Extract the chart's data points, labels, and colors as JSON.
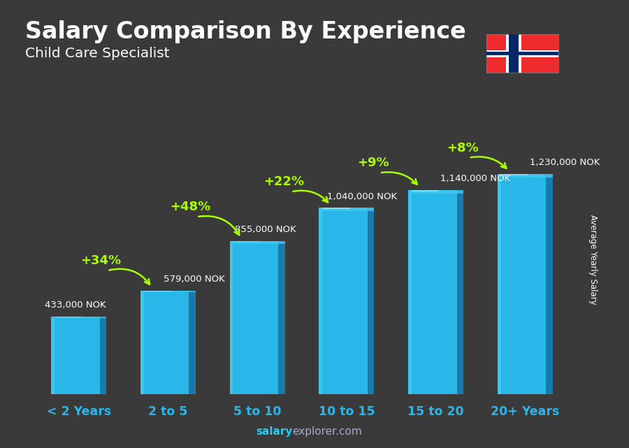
{
  "title": "Salary Comparison By Experience",
  "subtitle": "Child Care Specialist",
  "ylabel": "Average Yearly Salary",
  "footer": "salaryexplorer.com",
  "footer_bold": "salary",
  "categories": [
    "< 2 Years",
    "2 to 5",
    "5 to 10",
    "10 to 15",
    "15 to 20",
    "20+ Years"
  ],
  "values": [
    433000,
    579000,
    855000,
    1040000,
    1140000,
    1230000
  ],
  "labels": [
    "433,000 NOK",
    "579,000 NOK",
    "855,000 NOK",
    "1,040,000 NOK",
    "1,140,000 NOK",
    "1,230,000 NOK"
  ],
  "pct_labels": [
    "+34%",
    "+48%",
    "+22%",
    "+9%",
    "+8%"
  ],
  "bar_color_main": "#29b6e8",
  "bar_color_dark": "#1a7aaa",
  "bar_color_light": "#55d4f5",
  "bar_color_top": "#40c8f0",
  "pct_color": "#aaff00",
  "arrow_color": "#aaff00",
  "label_color": "#ffffff",
  "title_color": "#ffffff",
  "subtitle_color": "#ffffff",
  "xtick_color": "#29b6e8",
  "ylabel_color": "#ffffff",
  "footer_color": "#aaaaee",
  "bg_color": "#3a3a3a",
  "ylim": [
    0,
    1500000
  ],
  "bar_width": 0.62,
  "flag_red": "#EF2B2D",
  "flag_blue": "#002868",
  "flag_white": "#FFFFFF"
}
